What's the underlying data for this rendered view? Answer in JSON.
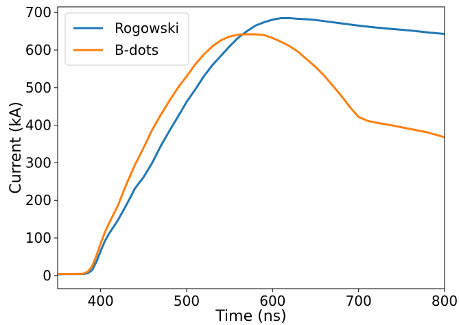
{
  "chart_data": {
    "type": "line",
    "xlabel": "Time (ns)",
    "ylabel": "Current (kA)",
    "xlim": [
      350,
      800
    ],
    "ylim": [
      -35,
      715
    ],
    "xticks": [
      400,
      500,
      600,
      700,
      800
    ],
    "yticks": [
      0,
      100,
      200,
      300,
      400,
      500,
      600,
      700
    ],
    "grid": false,
    "legend_position": "upper-left",
    "series": [
      {
        "name": "Rogowski",
        "color": "#1f77b4",
        "x": [
          350,
          360,
          370,
          380,
          385,
          390,
          395,
          400,
          405,
          410,
          420,
          430,
          440,
          450,
          460,
          470,
          480,
          490,
          500,
          510,
          520,
          530,
          540,
          550,
          560,
          570,
          580,
          590,
          600,
          610,
          620,
          630,
          640,
          650,
          660,
          680,
          700,
          720,
          740,
          760,
          780,
          800
        ],
        "y": [
          3,
          4,
          4,
          4,
          6,
          14,
          36,
          65,
          92,
          112,
          147,
          188,
          232,
          262,
          300,
          345,
          385,
          423,
          462,
          495,
          530,
          560,
          585,
          610,
          633,
          650,
          665,
          674,
          681,
          685,
          685,
          683,
          682,
          680,
          677,
          671,
          665,
          660,
          656,
          652,
          647,
          643
        ]
      },
      {
        "name": "B-dots",
        "color": "#ff7f0e",
        "x": [
          350,
          360,
          370,
          380,
          385,
          390,
          395,
          400,
          405,
          410,
          420,
          430,
          440,
          450,
          460,
          470,
          480,
          490,
          500,
          510,
          520,
          530,
          540,
          550,
          560,
          570,
          580,
          590,
          600,
          610,
          620,
          630,
          640,
          650,
          660,
          670,
          680,
          690,
          700,
          710,
          720,
          730,
          740,
          760,
          780,
          800
        ],
        "y": [
          4,
          4,
          4,
          5,
          10,
          24,
          52,
          85,
          115,
          140,
          186,
          243,
          295,
          340,
          388,
          428,
          465,
          500,
          530,
          562,
          588,
          610,
          626,
          636,
          641,
          642,
          642,
          640,
          632,
          622,
          610,
          595,
          575,
          555,
          532,
          505,
          478,
          448,
          422,
          412,
          407,
          403,
          399,
          390,
          381,
          368
        ]
      }
    ]
  }
}
